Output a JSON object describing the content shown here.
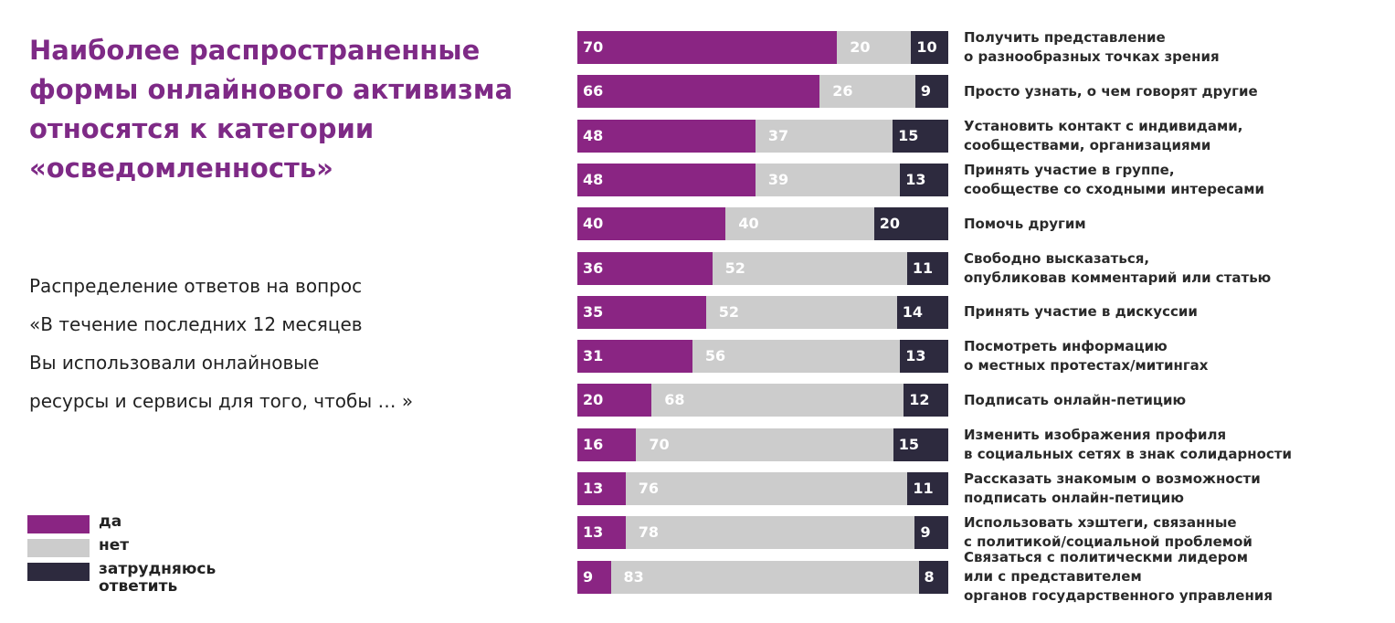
{
  "title": [
    "Наиболее распространенные",
    "формы онлайнового активизма",
    "относятся к категории",
    "«осведомленность»"
  ],
  "subtitle": [
    "Распределение ответов на вопрос",
    "«В течение последних 12 месяцев",
    "Вы использовали онлайновые",
    "ресурсы и сервисы для того, чтобы … »"
  ],
  "chart_data": {
    "type": "bar",
    "orientation": "horizontal-stacked-100",
    "colors": {
      "yes": "#8a2583",
      "no": "#cccccc",
      "unsure": "#2d2a3e"
    },
    "legend": [
      {
        "key": "yes",
        "label": "да"
      },
      {
        "key": "no",
        "label": "нет"
      },
      {
        "key": "unsure",
        "label": "затрудняюсь ответить"
      }
    ],
    "legend_placement": "bottom-left",
    "categories": [
      [
        "Получить представление",
        "о разнообразных точках зрения"
      ],
      [
        "Просто узнать, о чем говорят другие"
      ],
      [
        "Установить контакт с индивидами,",
        " сообществами, организациями"
      ],
      [
        "Принять участие в группе,",
        "сообществе со сходными интересами"
      ],
      [
        "Помочь другим"
      ],
      [
        "Свободно высказаться,",
        "опубликовав комментарий или статью"
      ],
      [
        "Принять участие в дискуссии"
      ],
      [
        "Посмотреть информацию",
        "о местных протестах/митингах"
      ],
      [
        "Подписать онлайн-петицию"
      ],
      [
        "Изменить изображения профиля",
        "в социальных сетях в знак солидарности"
      ],
      [
        "Рассказать знакомым о возможности",
        "подписать онлайн-петицию"
      ],
      [
        "Использовать хэштеги, связанные",
        "с политикой/социальной проблемой"
      ],
      [
        "Связаться с политическми лидером",
        "или с представителем",
        "органов государственного управления"
      ]
    ],
    "series": [
      {
        "name": "да",
        "values": [
          70,
          66,
          48,
          48,
          40,
          36,
          35,
          31,
          20,
          16,
          13,
          13,
          9
        ]
      },
      {
        "name": "нет",
        "values": [
          20,
          26,
          37,
          39,
          40,
          52,
          52,
          56,
          68,
          70,
          76,
          78,
          83
        ]
      },
      {
        "name": "затрудняюсь ответить",
        "values": [
          10,
          9,
          15,
          13,
          20,
          11,
          14,
          13,
          12,
          15,
          11,
          9,
          8
        ]
      }
    ]
  }
}
